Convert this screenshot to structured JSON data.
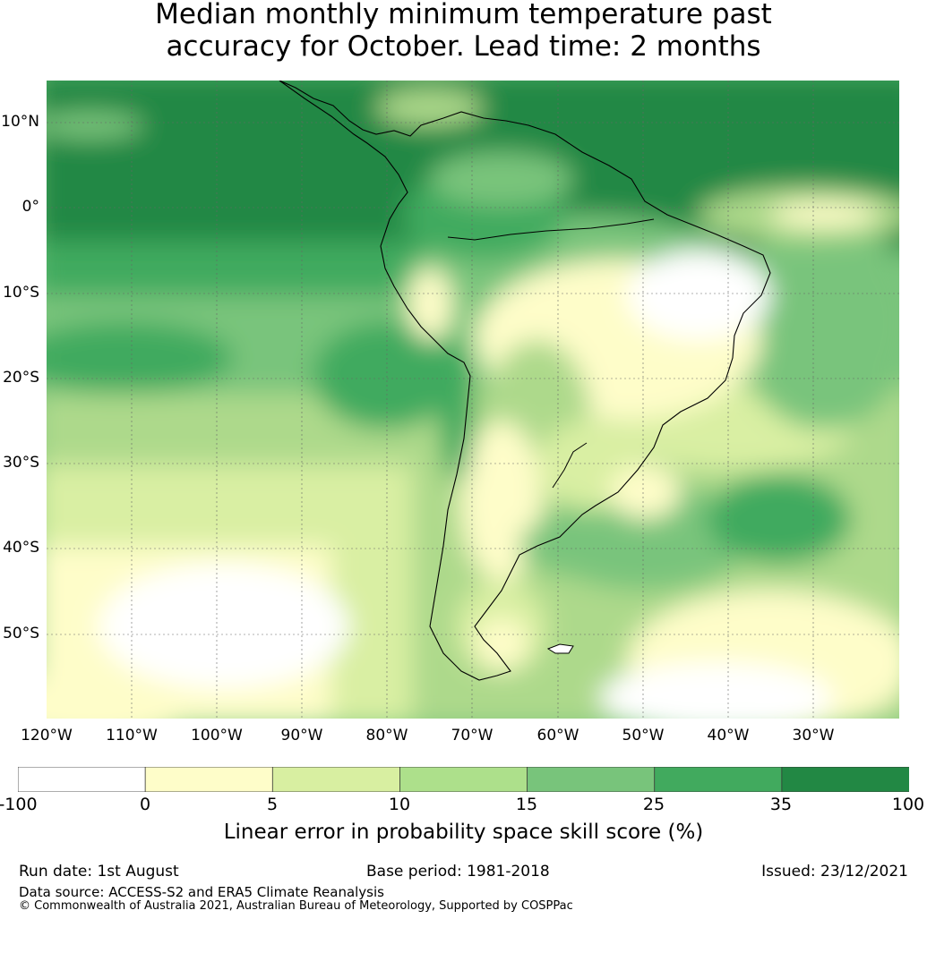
{
  "title_line1": "Median monthly minimum temperature past",
  "title_line2": "accuracy for October. Lead time: 2 months",
  "map": {
    "lat_labels": [
      "10°N",
      "0°",
      "10°S",
      "20°S",
      "30°S",
      "40°S",
      "50°S"
    ],
    "lon_labels": [
      "120°W",
      "110°W",
      "100°W",
      "90°W",
      "80°W",
      "70°W",
      "60°W",
      "50°W",
      "40°W",
      "30°W"
    ],
    "gridlines": true,
    "region": "South America"
  },
  "colorbar": {
    "labels": [
      "-100",
      "0",
      "5",
      "10",
      "15",
      "25",
      "35",
      "100"
    ],
    "colors": [
      "#ffffff",
      "#fefdc9",
      "#d8efa1",
      "#ade08b",
      "#78c47b",
      "#41aa5e",
      "#228844"
    ],
    "title": "Linear error in probability space skill score (%)"
  },
  "footer": {
    "run_date": "Run date: 1st August",
    "base_period": "Base period: 1981-2018",
    "issued": "Issued: 23/12/2021",
    "data_source": "Data source: ACCESS-S2 and ERA5 Climate Reanalysis",
    "copyright": "© Commonwealth of Australia 2021, Australian Bureau of Meteorology, Supported by COSPPac"
  }
}
